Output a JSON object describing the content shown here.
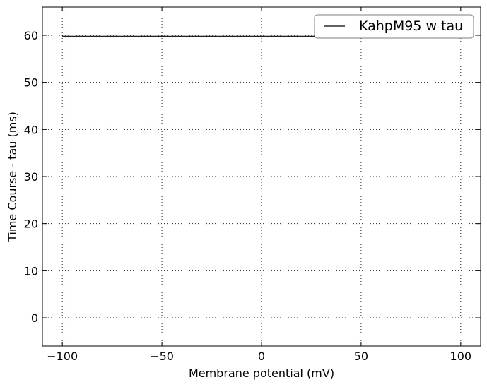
{
  "chart_data": {
    "type": "line",
    "title": "",
    "xlabel": "Membrane potential (mV)",
    "ylabel": "Time Course - tau (ms)",
    "xlim": [
      -110,
      110
    ],
    "ylim": [
      -6,
      66
    ],
    "xticks": [
      -100,
      -50,
      0,
      50,
      100
    ],
    "yticks": [
      0,
      10,
      20,
      30,
      40,
      50,
      60
    ],
    "xtick_labels": [
      "−100",
      "−50",
      "0",
      "50",
      "100"
    ],
    "ytick_labels": [
      "0",
      "10",
      "20",
      "30",
      "40",
      "50",
      "60"
    ],
    "grid": true,
    "legend_position": "top-right",
    "series": [
      {
        "name": "KahpM95 w tau",
        "color": "#000000",
        "x": [
          -100,
          -50,
          0,
          50,
          100
        ],
        "y": [
          59.8,
          59.8,
          59.8,
          59.8,
          59.8
        ]
      }
    ]
  }
}
